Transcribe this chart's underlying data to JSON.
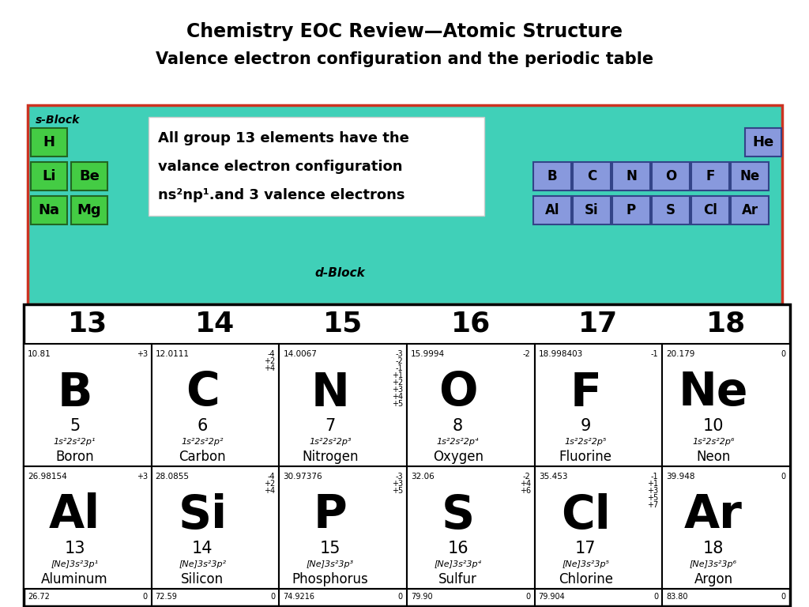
{
  "title": "Chemistry EOC Review—Atomic Structure",
  "subtitle": "Valence electron configuration and the periodic table",
  "annotation_lines": [
    "All group 13 elements have the",
    "valance electron configuration",
    "ns²np¹.and 3 valence electrons"
  ],
  "bg_color": "#ffffff",
  "periodic_bg": "#40d0b8",
  "periodic_border": "#cc3322",
  "s_block_color": "#44cc44",
  "p_block_color": "#8899dd",
  "group_headers": [
    "13",
    "14",
    "15",
    "16",
    "17",
    "18"
  ],
  "row1_elements": [
    {
      "symbol": "B",
      "number": "5",
      "mass": "10.81",
      "config": "1s²2s²2p¹",
      "name": "Boron",
      "charges": [
        "+3"
      ]
    },
    {
      "symbol": "C",
      "number": "6",
      "mass": "12.0111",
      "config": "1s²2s²2p²",
      "name": "Carbon",
      "charges": [
        "-4",
        "+2",
        "+4"
      ]
    },
    {
      "symbol": "N",
      "number": "7",
      "mass": "14.0067",
      "config": "1s²2s²2p³",
      "name": "Nitrogen",
      "charges": [
        "-3",
        "-2",
        "-1",
        "+1",
        "+2",
        "+3",
        "+4",
        "+5"
      ]
    },
    {
      "symbol": "O",
      "number": "8",
      "mass": "15.9994",
      "config": "1s²2s²2p⁴",
      "name": "Oxygen",
      "charges": [
        "-2"
      ]
    },
    {
      "symbol": "F",
      "number": "9",
      "mass": "18.998403",
      "config": "1s²2s²2p⁵",
      "name": "Fluorine",
      "charges": [
        "-1"
      ]
    },
    {
      "symbol": "Ne",
      "number": "10",
      "mass": "20.179",
      "config": "1s²2s²2p⁶",
      "name": "Neon",
      "charges": [
        "0"
      ]
    }
  ],
  "row2_elements": [
    {
      "symbol": "Al",
      "number": "13",
      "mass": "26.98154",
      "config": "[Ne]3s²3p¹",
      "name": "Aluminum",
      "charges": [
        "+3"
      ]
    },
    {
      "symbol": "Si",
      "number": "14",
      "mass": "28.0855",
      "config": "[Ne]3s²3p²",
      "name": "Silicon",
      "charges": [
        "-4",
        "+2",
        "+4"
      ]
    },
    {
      "symbol": "P",
      "number": "15",
      "mass": "30.97376",
      "config": "[Ne]3s²3p³",
      "name": "Phosphorus",
      "charges": [
        "-3",
        "+3",
        "+5"
      ]
    },
    {
      "symbol": "S",
      "number": "16",
      "mass": "32.06",
      "config": "[Ne]3s²3p⁴",
      "name": "Sulfur",
      "charges": [
        "-2",
        "+4",
        "+6"
      ]
    },
    {
      "symbol": "Cl",
      "number": "17",
      "mass": "35.453",
      "config": "[Ne]3s²3p⁵",
      "name": "Chlorine",
      "charges": [
        "-1",
        "+1",
        "+3",
        "+5",
        "+7"
      ]
    },
    {
      "symbol": "Ar",
      "number": "18",
      "mass": "39.948",
      "config": "[Ne]3s²3p⁶",
      "name": "Argon",
      "charges": [
        "0"
      ]
    }
  ],
  "row3_masses": [
    "26.72",
    "72.59",
    "74.9216",
    "79.90",
    "79.904",
    "83.80"
  ],
  "row3_charges": [
    "0",
    "0",
    "0",
    "0",
    "0",
    "0"
  ],
  "s_block_row1": [
    "H"
  ],
  "s_block_row2": [
    "Li",
    "Be"
  ],
  "s_block_row3": [
    "Na",
    "Mg"
  ],
  "p_block_row1_top": [
    "He"
  ],
  "p_block_row2": [
    "B",
    "C",
    "N",
    "O",
    "F",
    "Ne"
  ],
  "p_block_row3": [
    "Al",
    "Si",
    "P",
    "S",
    "Cl",
    "Ar"
  ]
}
